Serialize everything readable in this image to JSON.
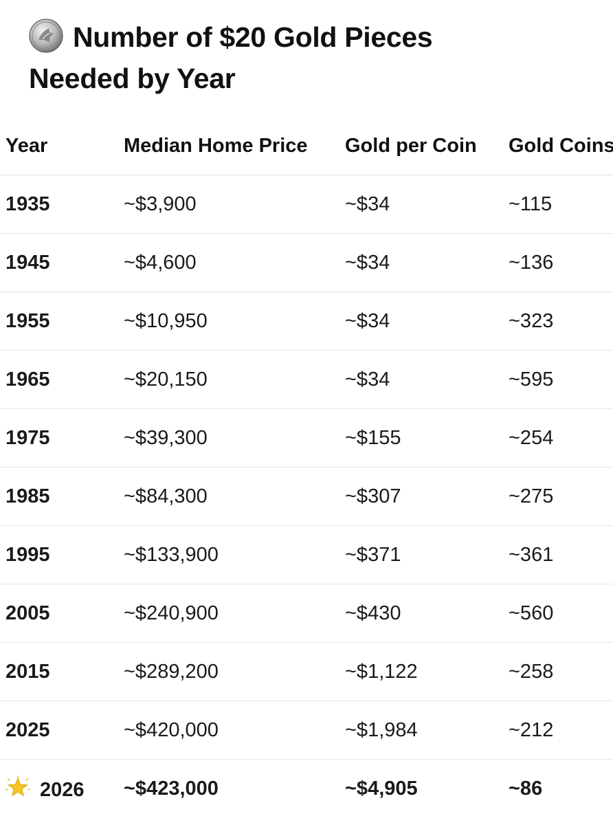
{
  "title": {
    "line1": "Number of $20 Gold Pieces",
    "line2": "Needed by Year",
    "icon": "coin-icon"
  },
  "table": {
    "headers": [
      "Year",
      "Median Home Price",
      "Gold per Coin",
      "Gold Coins"
    ],
    "rows": [
      {
        "year": "1935",
        "price": "~$3,900",
        "gold": "~$34",
        "coins": "~115"
      },
      {
        "year": "1945",
        "price": "~$4,600",
        "gold": "~$34",
        "coins": "~136"
      },
      {
        "year": "1955",
        "price": "~$10,950",
        "gold": "~$34",
        "coins": "~323"
      },
      {
        "year": "1965",
        "price": "~$20,150",
        "gold": "~$34",
        "coins": "~595"
      },
      {
        "year": "1975",
        "price": "~$39,300",
        "gold": "~$155",
        "coins": "~254"
      },
      {
        "year": "1985",
        "price": "~$84,300",
        "gold": "~$307",
        "coins": "~275"
      },
      {
        "year": "1995",
        "price": "~$133,900",
        "gold": "~$371",
        "coins": "~361"
      },
      {
        "year": "2005",
        "price": "~$240,900",
        "gold": "~$430",
        "coins": "~560"
      },
      {
        "year": "2015",
        "price": "~$289,200",
        "gold": "~$1,122",
        "coins": "~258"
      },
      {
        "year": "2025",
        "price": "~$420,000",
        "gold": "~$1,984",
        "coins": "~212"
      }
    ],
    "highlight_row": {
      "icon": "star-icon",
      "year": "2026",
      "price": "~$423,000",
      "gold": "~$4,905",
      "coins": "~86"
    }
  }
}
